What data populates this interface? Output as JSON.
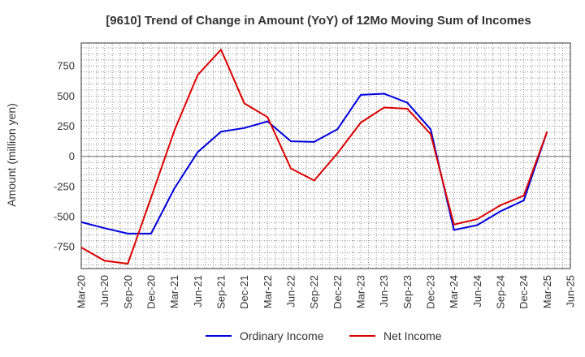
{
  "chart_data": {
    "type": "line",
    "title": "[9610]  Trend of Change in Amount (YoY) of 12Mo Moving Sum of Incomes",
    "ylabel": "Amount (million yen)",
    "xlabel": "",
    "ylim": [
      -930,
      940
    ],
    "yticks": [
      750,
      500,
      250,
      0,
      -250,
      -500,
      -750
    ],
    "ytick_labels": [
      "750",
      "500",
      "250",
      "0",
      "-250",
      "-500",
      "-750"
    ],
    "categories": [
      "Mar-20",
      "Jun-20",
      "Sep-20",
      "Dec-20",
      "Mar-21",
      "Jun-21",
      "Sep-21",
      "Dec-21",
      "Mar-22",
      "Jun-22",
      "Sep-22",
      "Dec-22",
      "Mar-23",
      "Jun-23",
      "Sep-23",
      "Dec-23",
      "Mar-24",
      "Jun-24",
      "Sep-24",
      "Dec-24",
      "Mar-25",
      "Jun-25"
    ],
    "grid": true,
    "legend_position": "bottom",
    "series": [
      {
        "name": "Ordinary Income",
        "color": "#0000dd",
        "values": [
          -545,
          -595,
          -640,
          -640,
          -265,
          35,
          205,
          235,
          290,
          125,
          120,
          225,
          510,
          520,
          445,
          225,
          -610,
          -570,
          -455,
          -365,
          205,
          null
        ]
      },
      {
        "name": "Net Income",
        "color": "#dd0000",
        "values": [
          -755,
          -865,
          -890,
          -340,
          215,
          675,
          885,
          440,
          325,
          -100,
          -200,
          25,
          280,
          405,
          395,
          185,
          -565,
          -520,
          -405,
          -325,
          205,
          null
        ]
      }
    ]
  }
}
